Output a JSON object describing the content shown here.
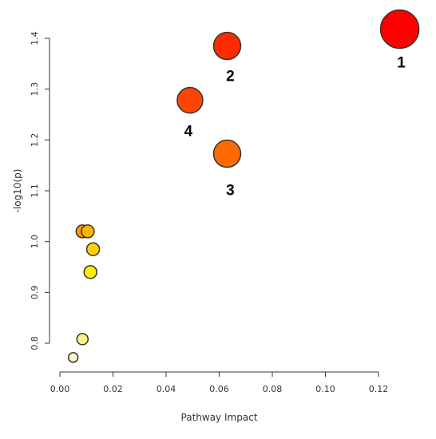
{
  "chart_data": {
    "type": "scatter",
    "title": "",
    "xlabel": "Pathway Impact",
    "ylabel": "-log10(p)",
    "xlim": [
      0,
      0.128
    ],
    "ylim": [
      0.77,
      1.42
    ],
    "xticks": [
      0.0,
      0.02,
      0.04,
      0.06,
      0.08,
      0.1,
      0.12
    ],
    "xtick_labels": [
      "0.00",
      "0.02",
      "0.04",
      "0.06",
      "0.08",
      "0.10",
      "0.12"
    ],
    "yticks": [
      0.8,
      0.9,
      1.0,
      1.1,
      1.2,
      1.3,
      1.4
    ],
    "ytick_labels": [
      "0.8",
      "0.9",
      "1.0",
      "1.1",
      "1.2",
      "1.3",
      "1.4"
    ],
    "grid": false,
    "points": [
      {
        "x": 0.128,
        "y": 1.418,
        "size": 24,
        "color": "#ff0000",
        "label": "1"
      },
      {
        "x": 0.063,
        "y": 1.385,
        "size": 17,
        "color": "#ff2a00",
        "label": "2"
      },
      {
        "x": 0.063,
        "y": 1.173,
        "size": 17,
        "color": "#ff6a00",
        "label": "3"
      },
      {
        "x": 0.049,
        "y": 1.278,
        "size": 16,
        "color": "#ff4500",
        "label": "4"
      },
      {
        "x": 0.0085,
        "y": 1.02,
        "size": 8,
        "color": "#ff9a00",
        "label": ""
      },
      {
        "x": 0.0105,
        "y": 1.02,
        "size": 8,
        "color": "#ffb300",
        "label": ""
      },
      {
        "x": 0.0125,
        "y": 0.985,
        "size": 8,
        "color": "#ffd100",
        "label": ""
      },
      {
        "x": 0.0115,
        "y": 0.94,
        "size": 8,
        "color": "#ffee00",
        "label": ""
      },
      {
        "x": 0.0085,
        "y": 0.808,
        "size": 7,
        "color": "#fff38a",
        "label": ""
      },
      {
        "x": 0.005,
        "y": 0.772,
        "size": 6,
        "color": "#fff7c8",
        "label": ""
      }
    ]
  }
}
